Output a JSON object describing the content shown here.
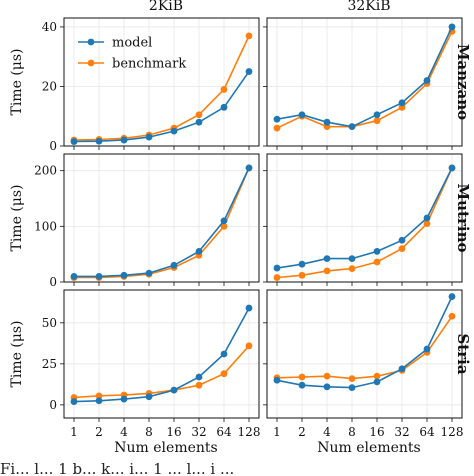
{
  "caption": "Fi...    l...    1 b...    k...    i...    1 ... l...  i ...",
  "chart_data": {
    "type": "line",
    "x_label": "Num elements",
    "y_label": "Time (μs)",
    "categories": [
      "1",
      "2",
      "4",
      "8",
      "16",
      "32",
      "64",
      "128"
    ],
    "x": [
      1,
      2,
      4,
      8,
      16,
      32,
      64,
      128
    ],
    "x_scale": "log2",
    "columns": [
      "2KiB",
      "32KiB"
    ],
    "rows": [
      "Manzano",
      "Mutrino",
      "Stria"
    ],
    "legend": {
      "placement": "top-left of first panel",
      "entries": [
        "model",
        "benchmark"
      ]
    },
    "colors": {
      "model": "#1f77b4",
      "benchmark": "#ff7f0e"
    },
    "grid": true,
    "panels": [
      {
        "row": "Manzano",
        "column": "2KiB",
        "ylim": [
          0,
          43
        ],
        "yticks": [
          0,
          20,
          40
        ],
        "series": [
          {
            "name": "model",
            "values": [
              1.5,
              1.6,
              2.0,
              3.0,
              5.0,
              8.0,
              13.0,
              25.0
            ]
          },
          {
            "name": "benchmark",
            "values": [
              2.0,
              2.2,
              2.6,
              3.7,
              6.0,
              10.5,
              19.0,
              37.0
            ]
          }
        ]
      },
      {
        "row": "Manzano",
        "column": "32KiB",
        "ylim": [
          0,
          43
        ],
        "yticks": [
          0,
          20,
          40
        ],
        "series": [
          {
            "name": "model",
            "values": [
              9.0,
              10.5,
              8.0,
              6.5,
              10.5,
              14.5,
              22.0,
              40.0
            ]
          },
          {
            "name": "benchmark",
            "values": [
              6.0,
              10.0,
              6.5,
              6.5,
              8.5,
              13.0,
              21.0,
              38.5
            ]
          }
        ]
      },
      {
        "row": "Mutrino",
        "column": "2KiB",
        "ylim": [
          0,
          230
        ],
        "yticks": [
          0,
          100,
          200
        ],
        "series": [
          {
            "name": "model",
            "values": [
              10,
              10,
              12,
              16,
              30,
              55,
              110,
              205
            ]
          },
          {
            "name": "benchmark",
            "values": [
              8,
              8,
              10,
              14,
              26,
              48,
              100,
              205
            ]
          }
        ]
      },
      {
        "row": "Mutrino",
        "column": "32KiB",
        "ylim": [
          0,
          230
        ],
        "yticks": [
          0,
          100,
          200
        ],
        "series": [
          {
            "name": "model",
            "values": [
              25,
              32,
              42,
              42,
              55,
              75,
              115,
              205
            ]
          },
          {
            "name": "benchmark",
            "values": [
              8,
              12,
              20,
              24,
              36,
              60,
              105,
              205
            ]
          }
        ]
      },
      {
        "row": "Stria",
        "column": "2KiB",
        "ylim": [
          -8,
          70
        ],
        "yticks": [
          0,
          25,
          50
        ],
        "series": [
          {
            "name": "model",
            "values": [
              2.0,
              2.5,
              3.5,
              5.0,
              9.0,
              17.0,
              31.0,
              59.0
            ]
          },
          {
            "name": "benchmark",
            "values": [
              4.5,
              5.5,
              6.0,
              7.0,
              9.0,
              12.0,
              19.0,
              36.0
            ]
          }
        ]
      },
      {
        "row": "Stria",
        "column": "32KiB",
        "ylim": [
          -8,
          70
        ],
        "yticks": [
          0,
          25,
          50
        ],
        "series": [
          {
            "name": "model",
            "values": [
              15.0,
              12.0,
              11.0,
              10.5,
              14.0,
              22.0,
              34.0,
              66.0
            ]
          },
          {
            "name": "benchmark",
            "values": [
              16.5,
              17.0,
              17.5,
              16.0,
              17.5,
              21.0,
              32.0,
              54.0
            ]
          }
        ]
      }
    ]
  }
}
